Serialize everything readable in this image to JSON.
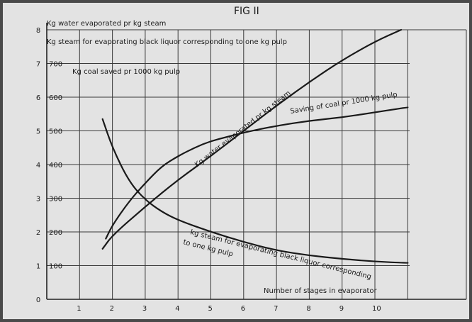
{
  "chart_data": {
    "type": "line",
    "title": "FIG II",
    "xlabel": "Number of stages in evaporator",
    "x_ticks": [
      "1",
      "2",
      "3",
      "4",
      "5",
      "6",
      "7",
      "8",
      "9",
      "10"
    ],
    "xlim": [
      0,
      11
    ],
    "axes": [
      {
        "name": "Kg water evaporated pr kg steam",
        "ticks": [
          "0",
          "1",
          "2",
          "3",
          "4",
          "5",
          "6",
          "7",
          "8"
        ],
        "lim": [
          0,
          8
        ]
      },
      {
        "name": "Kg steam for evaporating black liquor corresponding to one kg pulp",
        "ticks": [
          "0",
          "1",
          "2",
          "3",
          "4",
          "5",
          "6",
          "7",
          "8"
        ],
        "lim": [
          0,
          8
        ]
      },
      {
        "name": "Kg coal saved pr 1000 kg pulp",
        "ticks": [
          "100",
          "200",
          "300",
          "400",
          "500",
          "600",
          "700"
        ],
        "lim": [
          0,
          800
        ]
      }
    ],
    "series": [
      {
        "name": "Kg water evaporated pr kg steam",
        "x": [
          1.7,
          2,
          3,
          4,
          5,
          6,
          7,
          8,
          9,
          10,
          10.8
        ],
        "values": [
          1.5,
          1.9,
          2.75,
          3.55,
          4.25,
          5.0,
          5.75,
          6.45,
          7.1,
          7.65,
          8.0
        ]
      },
      {
        "name": "Kg steam for evaporating black liquor corresponding to one kg pulp",
        "x": [
          1.7,
          2,
          2.5,
          3,
          3.5,
          4,
          5,
          6,
          7,
          8,
          9,
          10,
          11
        ],
        "values": [
          5.35,
          4.5,
          3.5,
          2.95,
          2.6,
          2.35,
          2.0,
          1.7,
          1.45,
          1.3,
          1.2,
          1.12,
          1.08
        ]
      },
      {
        "name": "Saving of coal pr 1000 kg pulp",
        "x": [
          1.8,
          2,
          2.5,
          3,
          3.5,
          4,
          4.5,
          5,
          5.5,
          6,
          7,
          8,
          9,
          10,
          11
        ],
        "values": [
          180,
          220,
          290,
          345,
          395,
          425,
          450,
          470,
          482,
          495,
          515,
          530,
          540,
          555,
          570
        ]
      }
    ],
    "annotations": [
      "Kg water evaporated pr kg steam",
      "Saving of coal pr 1000 kg pulp",
      "kg steam for evaporating black liquor corresponding",
      "to one kg pulp"
    ],
    "grid": true,
    "colors": {
      "paper": "#e2e2e2",
      "ink": "#1a1a1a",
      "background": "#4a4a4a"
    }
  }
}
